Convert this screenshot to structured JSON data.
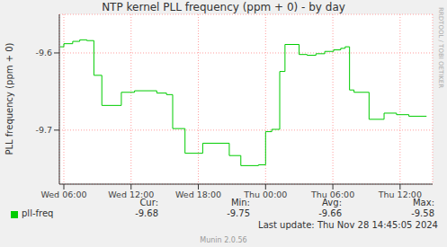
{
  "chart_data": {
    "type": "line",
    "title": "NTP kernel PLL frequency (ppm + 0) - by day",
    "y_label": "PLL frequency (ppm + 0)",
    "x": [
      5.68,
      6.0,
      6.79,
      7.42,
      8.05,
      8.68,
      9.39,
      11.13,
      12.31,
      14.29,
      15.16,
      15.71,
      16.81,
      18.39,
      20.76,
      21.79,
      23.36,
      24.0,
      24.55,
      25.26,
      25.73,
      26.99,
      27.7,
      28.49,
      29.28,
      30.07,
      30.7,
      31.1,
      31.49,
      31.89,
      33.23,
      34.57,
      35.68,
      36.78,
      38.36
    ],
    "series": [
      {
        "name": "pll-freq",
        "color": "#00cc00",
        "line_style": "step",
        "values": [
          -9.592,
          -9.588,
          -9.585,
          -9.583,
          -9.584,
          -9.629,
          -9.668,
          -9.651,
          -9.649,
          -9.652,
          -9.654,
          -9.698,
          -9.73,
          -9.717,
          -9.733,
          -9.746,
          -9.745,
          -9.702,
          -9.699,
          -9.624,
          -9.589,
          -9.602,
          -9.603,
          -9.601,
          -9.598,
          -9.596,
          -9.594,
          -9.592,
          -9.648,
          -9.651,
          -9.686,
          -9.678,
          -9.68,
          -9.682,
          -9.682
        ]
      }
    ],
    "xlim": [
      5.6,
      38.9
    ],
    "xticks": [
      {
        "value": 6,
        "label": "Wed 06:00"
      },
      {
        "value": 12,
        "label": "Wed 12:00"
      },
      {
        "value": 18,
        "label": "Wed 18:00"
      },
      {
        "value": 24,
        "label": "Thu 00:00"
      },
      {
        "value": 30,
        "label": "Thu 06:00"
      },
      {
        "value": 36,
        "label": "Thu 12:00"
      }
    ],
    "ylim": [
      -9.77,
      -9.55
    ],
    "yticks": [
      -9.7,
      -9.6
    ],
    "grid": true,
    "legend_stats": [
      {
        "label": "Cur:",
        "value": -9.68
      },
      {
        "label": "Min:",
        "value": -9.75
      },
      {
        "label": "Avg:",
        "value": -9.66
      },
      {
        "label": "Max:",
        "value": -9.58
      }
    ],
    "last_update": "Last update: Thu Nov 28 14:45:05 2024",
    "footer": "Munin 2.0.56",
    "side_text": "RRDTOOL / TOBI OETIKER"
  }
}
